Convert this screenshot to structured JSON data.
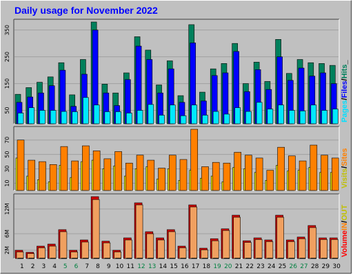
{
  "title": "Daily usage for November 2022",
  "colors": {
    "hits": "#00805c",
    "files": "#0000ff",
    "pages": "#00e8ff",
    "visits": "#ffff00",
    "sites": "#ff8000",
    "kbin": "#ff8000",
    "kbout": "#ffff00",
    "volume": "#d00000",
    "weekend": "#008040",
    "weekday": "#000000",
    "panel_bg": "#c0c0c0",
    "separator": "#00cc00"
  },
  "legend": {
    "panel1": [
      {
        "text": "Pages",
        "color": "#00e0ff"
      },
      {
        "text": "/",
        "color": "#000000"
      },
      {
        "text": "Files",
        "color": "#0000ff"
      },
      {
        "text": "/",
        "color": "#000000"
      },
      {
        "text": "Hits",
        "color": "#00805c"
      },
      {
        "text": "_",
        "color": "#000000"
      }
    ],
    "panel2": [
      {
        "text": "Visits",
        "color": "#c0c000"
      },
      {
        "text": "/",
        "color": "#000000"
      },
      {
        "text": "Sites",
        "color": "#ff8000"
      }
    ],
    "panel3": [
      {
        "text": "Volume",
        "color": "#ff0000"
      },
      {
        "text": "IN",
        "color": "#ff8000"
      },
      {
        "text": "/",
        "color": "#000000"
      },
      {
        "text": "OUT",
        "color": "#c0c000"
      }
    ]
  },
  "chart_data": [
    {
      "type": "bar",
      "name": "Pages/Files/Hits",
      "categories": [
        "1",
        "2",
        "3",
        "4",
        "5",
        "6",
        "7",
        "8",
        "9",
        "10",
        "11",
        "12",
        "13",
        "14",
        "15",
        "16",
        "17",
        "18",
        "19",
        "20",
        "21",
        "22",
        "23",
        "24",
        "25",
        "26",
        "27",
        "28",
        "29",
        "30"
      ],
      "weekend_days": [
        "5",
        "6",
        "12",
        "13",
        "19",
        "20",
        "26",
        "27"
      ],
      "yticks": [
        "50",
        "150",
        "250",
        "350"
      ],
      "ylim": [
        0,
        380
      ],
      "series": [
        {
          "name": "Hits",
          "values": [
            110,
            135,
            155,
            175,
            228,
            108,
            240,
            380,
            148,
            115,
            190,
            325,
            275,
            145,
            235,
            105,
            370,
            118,
            205,
            225,
            300,
            150,
            230,
            158,
            315,
            188,
            240,
            228,
            225,
            218
          ]
        },
        {
          "name": "Files",
          "values": [
            80,
            100,
            115,
            142,
            200,
            65,
            185,
            350,
            115,
            68,
            165,
            290,
            240,
            115,
            205,
            80,
            302,
            85,
            180,
            190,
            270,
            120,
            202,
            128,
            250,
            162,
            208,
            178,
            190,
            150
          ]
        },
        {
          "name": "Pages",
          "values": [
            40,
            60,
            50,
            50,
            46,
            45,
            98,
            70,
            45,
            45,
            40,
            50,
            72,
            32,
            70,
            30,
            70,
            32,
            46,
            36,
            60,
            46,
            80,
            55,
            70,
            50,
            48,
            70,
            50,
            55
          ]
        }
      ]
    },
    {
      "type": "bar",
      "name": "Visits/Sites",
      "categories": [
        "1",
        "2",
        "3",
        "4",
        "5",
        "6",
        "7",
        "8",
        "9",
        "10",
        "11",
        "12",
        "13",
        "14",
        "15",
        "16",
        "17",
        "18",
        "19",
        "20",
        "21",
        "22",
        "23",
        "24",
        "25",
        "26",
        "27",
        "28",
        "29",
        "30"
      ],
      "yticks": [
        "10",
        "30",
        "50",
        "70"
      ],
      "ylim": [
        0,
        85
      ],
      "series": [
        {
          "name": "Visits",
          "values": [
            45,
            20,
            15,
            12,
            35,
            18,
            40,
            42,
            30,
            34,
            20,
            30,
            33,
            16,
            30,
            14,
            28,
            17,
            20,
            12,
            32,
            30,
            25,
            14,
            35,
            27,
            28,
            32,
            25,
            25
          ]
        },
        {
          "name": "Sites",
          "values": [
            70,
            42,
            40,
            36,
            61,
            41,
            62,
            55,
            44,
            54,
            38,
            49,
            42,
            31,
            49,
            43,
            85,
            33,
            39,
            38,
            53,
            49,
            45,
            28,
            60,
            48,
            41,
            63,
            49,
            45
          ]
        }
      ]
    },
    {
      "type": "bar",
      "name": "Volume In/Out",
      "categories": [
        "1",
        "2",
        "3",
        "4",
        "5",
        "6",
        "7",
        "8",
        "9",
        "10",
        "11",
        "12",
        "13",
        "14",
        "15",
        "16",
        "17",
        "18",
        "19",
        "20",
        "21",
        "22",
        "23",
        "24",
        "25",
        "26",
        "27",
        "28",
        "29",
        "30"
      ],
      "yticks": [
        "2M",
        "6M",
        "12M"
      ],
      "ylim": [
        0,
        15
      ],
      "series": [
        {
          "name": "Volume",
          "values": [
            2.0,
            1.5,
            3.0,
            3.5,
            7.0,
            2.0,
            4.5,
            15.0,
            4.2,
            2.0,
            5.0,
            13.5,
            6.5,
            5.0,
            7.0,
            3.0,
            13.0,
            2.5,
            4.8,
            7.2,
            10.5,
            4.3,
            5.0,
            4.5,
            10.5,
            4.5,
            5.2,
            8.0,
            5.0,
            5.0
          ]
        },
        {
          "name": "IN",
          "values": [
            1.6,
            1.2,
            2.6,
            3.0,
            6.5,
            1.6,
            4.0,
            14.3,
            3.8,
            1.6,
            4.5,
            13.0,
            6.0,
            4.5,
            6.5,
            2.6,
            12.5,
            2.1,
            4.3,
            6.8,
            10.0,
            3.9,
            4.6,
            4.1,
            10.0,
            4.1,
            4.8,
            7.5,
            4.6,
            4.6
          ]
        },
        {
          "name": "OUT",
          "values": [
            0.1,
            0.1,
            0.1,
            0.1,
            0.1,
            0.1,
            0.1,
            0.1,
            0.1,
            0.1,
            0.1,
            0.1,
            0.1,
            0.1,
            0.1,
            0.1,
            0.1,
            0.1,
            0.1,
            0.1,
            0.1,
            0.1,
            0.1,
            0.1,
            0.1,
            0.1,
            0.1,
            0.1,
            0.1,
            0.1
          ]
        }
      ]
    }
  ]
}
